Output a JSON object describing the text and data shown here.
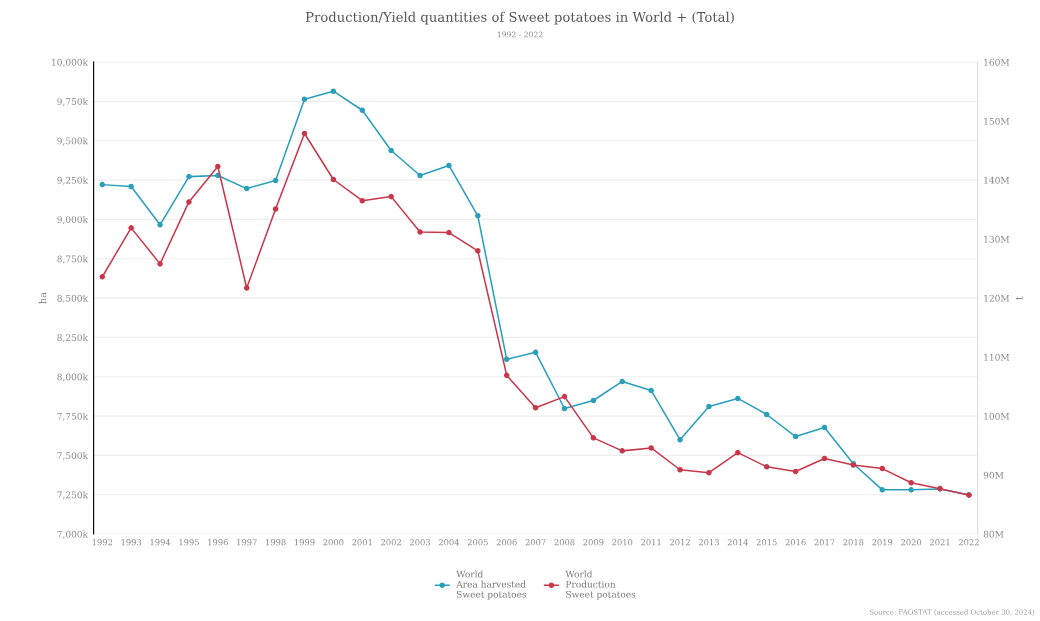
{
  "chart_data": {
    "type": "line",
    "title": "Production/Yield quantities of Sweet potatoes in World + (Total)",
    "subtitle": "1992 - 2022",
    "categories": [
      "1992",
      "1993",
      "1994",
      "1995",
      "1996",
      "1997",
      "1998",
      "1999",
      "2000",
      "2001",
      "2002",
      "2003",
      "2004",
      "2005",
      "2006",
      "2007",
      "2008",
      "2009",
      "2010",
      "2011",
      "2012",
      "2013",
      "2014",
      "2015",
      "2016",
      "2017",
      "2018",
      "2019",
      "2020",
      "2021",
      "2022"
    ],
    "series": [
      {
        "name": "World\nArea harvested\nSweet potatoes",
        "color": "#2a9fbc",
        "values": [
          9221,
          9209,
          8966,
          9272,
          9279,
          9196,
          9247,
          9764,
          9815,
          9694,
          9438,
          9279,
          9343,
          9023,
          8111,
          8155,
          7798,
          7849,
          7970,
          7913,
          7600,
          7811,
          7862,
          7760,
          7620,
          7677,
          7447,
          7281,
          7281,
          7287,
          7249
        ]
      },
      {
        "name": "World\nProduction\nSweet potatoes",
        "color": "#c9374a",
        "axis": "y2",
        "values": [
          123.6,
          131.9,
          125.8,
          136.3,
          142.3,
          121.7,
          135.1,
          147.9,
          140.1,
          136.5,
          137.2,
          131.2,
          131.1,
          128.0,
          106.9,
          101.4,
          103.3,
          96.3,
          94.1,
          94.6,
          90.9,
          90.4,
          93.8,
          91.4,
          90.6,
          92.8,
          91.7,
          91.1,
          88.7,
          87.7,
          86.6
        ]
      }
    ],
    "ylabel": "ha",
    "y2label": "t",
    "ylim": [
      7000,
      10000
    ],
    "yticks": [
      {
        "value": 7000,
        "label": "7,000k"
      },
      {
        "value": 7250,
        "label": "7,250k"
      },
      {
        "value": 7500,
        "label": "7,500k"
      },
      {
        "value": 7750,
        "label": "7,750k"
      },
      {
        "value": 8000,
        "label": "8,000k"
      },
      {
        "value": 8250,
        "label": "8,250k"
      },
      {
        "value": 8500,
        "label": "8,500k"
      },
      {
        "value": 8750,
        "label": "8,750k"
      },
      {
        "value": 9000,
        "label": "9,000k"
      },
      {
        "value": 9250,
        "label": "9,250k"
      },
      {
        "value": 9500,
        "label": "9,500k"
      },
      {
        "value": 9750,
        "label": "9,750k"
      },
      {
        "value": 10000,
        "label": "10,000k"
      }
    ],
    "y2lim": [
      80,
      160
    ],
    "y2ticks": [
      {
        "value": 80,
        "label": "80M"
      },
      {
        "value": 90,
        "label": "90M"
      },
      {
        "value": 100,
        "label": "100M"
      },
      {
        "value": 110,
        "label": "110M"
      },
      {
        "value": 120,
        "label": "120M"
      },
      {
        "value": 130,
        "label": "130M"
      },
      {
        "value": 140,
        "label": "140M"
      },
      {
        "value": 150,
        "label": "150M"
      },
      {
        "value": 160,
        "label": "160M"
      }
    ],
    "grid": "y",
    "legend": "bottom",
    "marker": "circle",
    "line_style": "solid",
    "annotations": [
      "Source: FAOSTAT (accessed October 30, 2024)"
    ]
  }
}
